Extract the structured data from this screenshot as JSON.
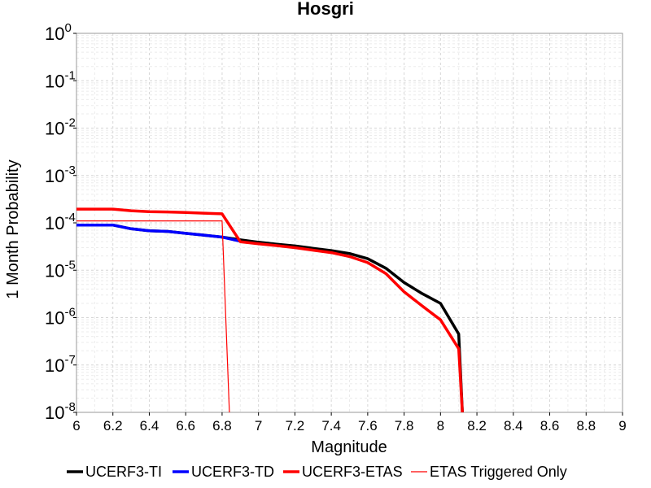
{
  "chart_data": {
    "type": "line",
    "title": "Hosgri",
    "xlabel": "Magnitude",
    "ylabel": "1 Month Probability",
    "xlim": [
      6,
      9
    ],
    "ylim": [
      1e-08,
      1
    ],
    "yscale": "log",
    "grid": true,
    "legend_position": "bottom",
    "x_ticks": [
      "6",
      "6.2",
      "6.4",
      "6.6",
      "6.8",
      "7",
      "7.2",
      "7.4",
      "7.6",
      "7.8",
      "8",
      "8.2",
      "8.4",
      "8.6",
      "8.8",
      "9"
    ],
    "y_ticks": [
      {
        "value": 1,
        "base": "10",
        "exp": "0"
      },
      {
        "value": 0.1,
        "base": "10",
        "exp": "-1"
      },
      {
        "value": 0.01,
        "base": "10",
        "exp": "-2"
      },
      {
        "value": 0.001,
        "base": "10",
        "exp": "-3"
      },
      {
        "value": 0.0001,
        "base": "10",
        "exp": "-4"
      },
      {
        "value": 1e-05,
        "base": "10",
        "exp": "-5"
      },
      {
        "value": 1e-06,
        "base": "10",
        "exp": "-6"
      },
      {
        "value": 1e-07,
        "base": "10",
        "exp": "-7"
      },
      {
        "value": 1e-08,
        "base": "10",
        "exp": "-8"
      }
    ],
    "series": [
      {
        "name": "UCERF3-TI",
        "color": "#000000",
        "weight": "thick",
        "points": [
          [
            6.0,
            9e-05
          ],
          [
            6.1,
            9e-05
          ],
          [
            6.2,
            9e-05
          ],
          [
            6.3,
            7.5e-05
          ],
          [
            6.4,
            6.8e-05
          ],
          [
            6.5,
            6.6e-05
          ],
          [
            6.6,
            6e-05
          ],
          [
            6.7,
            5.5e-05
          ],
          [
            6.8,
            5e-05
          ],
          [
            6.9,
            4.4e-05
          ],
          [
            7.0,
            3.9e-05
          ],
          [
            7.1,
            3.55e-05
          ],
          [
            7.2,
            3.25e-05
          ],
          [
            7.3,
            2.9e-05
          ],
          [
            7.4,
            2.6e-05
          ],
          [
            7.5,
            2.25e-05
          ],
          [
            7.6,
            1.75e-05
          ],
          [
            7.7,
            1.1e-05
          ],
          [
            7.8,
            5.5e-06
          ],
          [
            7.9,
            3.2e-06
          ],
          [
            8.0,
            2e-06
          ],
          [
            8.1,
            4.5e-07
          ],
          [
            8.12,
            1e-08
          ]
        ]
      },
      {
        "name": "UCERF3-TD",
        "color": "#0000ff",
        "weight": "thick",
        "points": [
          [
            6.0,
            9e-05
          ],
          [
            6.1,
            9e-05
          ],
          [
            6.2,
            9e-05
          ],
          [
            6.3,
            7.5e-05
          ],
          [
            6.4,
            6.8e-05
          ],
          [
            6.5,
            6.6e-05
          ],
          [
            6.6,
            6e-05
          ],
          [
            6.7,
            5.5e-05
          ],
          [
            6.8,
            5e-05
          ],
          [
            6.9,
            4.1e-05
          ]
        ]
      },
      {
        "name": "UCERF3-ETAS",
        "color": "#ff0000",
        "weight": "thick",
        "points": [
          [
            6.0,
            0.000195
          ],
          [
            6.1,
            0.000195
          ],
          [
            6.2,
            0.000195
          ],
          [
            6.3,
            0.00018
          ],
          [
            6.4,
            0.000172
          ],
          [
            6.5,
            0.00017
          ],
          [
            6.6,
            0.000165
          ],
          [
            6.7,
            0.00016
          ],
          [
            6.8,
            0.000155
          ],
          [
            6.9,
            4e-05
          ],
          [
            7.0,
            3.6e-05
          ],
          [
            7.1,
            3.3e-05
          ],
          [
            7.2,
            3e-05
          ],
          [
            7.3,
            2.65e-05
          ],
          [
            7.4,
            2.35e-05
          ],
          [
            7.5,
            1.95e-05
          ],
          [
            7.6,
            1.45e-05
          ],
          [
            7.7,
            8.5e-06
          ],
          [
            7.8,
            3.5e-06
          ],
          [
            7.9,
            1.75e-06
          ],
          [
            8.0,
            9e-07
          ],
          [
            8.1,
            2.2e-07
          ],
          [
            8.12,
            1e-08
          ]
        ]
      },
      {
        "name": "ETAS Triggered Only",
        "color": "#ff0000",
        "weight": "thin",
        "points": [
          [
            6.0,
            0.00011
          ],
          [
            6.8,
            0.00011
          ],
          [
            6.84,
            1e-08
          ]
        ]
      }
    ]
  }
}
